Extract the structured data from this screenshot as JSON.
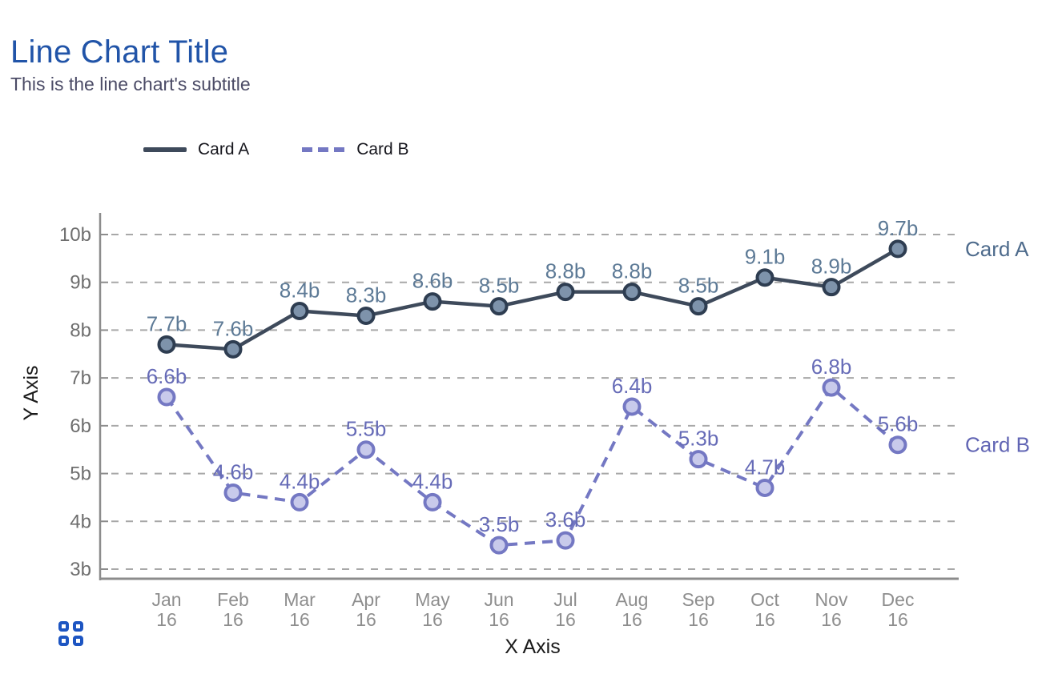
{
  "header": {
    "title": "Line Chart Title",
    "subtitle": "This is the line chart's subtitle",
    "title_color": "#2154a8",
    "subtitle_color": "#4b4b66"
  },
  "legend": {
    "position": "top",
    "items": [
      {
        "label": "Card A",
        "style": "solid",
        "color": "#3e4a5b"
      },
      {
        "label": "Card B",
        "style": "dashed",
        "color": "#7478c3"
      }
    ]
  },
  "chart_data": {
    "type": "line",
    "title": "Line Chart Title",
    "subtitle": "This is the line chart's subtitle",
    "xlabel": "X Axis",
    "ylabel": "Y Axis",
    "categories": [
      "Jan 16",
      "Feb 16",
      "Mar 16",
      "Apr 16",
      "May 16",
      "Jun 16",
      "Jul 16",
      "Aug 16",
      "Sep 16",
      "Oct 16",
      "Nov 16",
      "Dec 16"
    ],
    "y_ticks": [
      "3b",
      "4b",
      "5b",
      "6b",
      "7b",
      "8b",
      "9b",
      "10b"
    ],
    "ylim": [
      3,
      10
    ],
    "unit_suffix": "b",
    "grid": true,
    "grid_style": "dashed",
    "legend_position": "top",
    "axis_color": "#8c8c8c",
    "grid_color": "#a8a8a8",
    "y_tick_label_color": "#6e6e6e",
    "x_tick_label_color": "#8e8e8e",
    "axis_title_color": "#1a1a1a",
    "series": [
      {
        "name": "Card A",
        "style": "solid",
        "line_color": "#3e4a5b",
        "marker_fill": "#7e93ab",
        "marker_stroke": "#2e3d51",
        "label_color": "#5d7a96",
        "end_label_color": "#4e6b8c",
        "values": [
          7.7,
          7.6,
          8.4,
          8.3,
          8.6,
          8.5,
          8.8,
          8.8,
          8.5,
          9.1,
          8.9,
          9.7
        ],
        "point_labels": [
          "7.7b",
          "7.6b",
          "8.4b",
          "8.3b",
          "8.6b",
          "8.5b",
          "8.8b",
          "8.8b",
          "8.5b",
          "9.1b",
          "8.9b",
          "9.7b"
        ]
      },
      {
        "name": "Card B",
        "style": "dashed",
        "line_color": "#7478c3",
        "marker_fill": "#c8caeb",
        "marker_stroke": "#7478c3",
        "label_color": "#666bb7",
        "end_label_color": "#6165b4",
        "values": [
          6.6,
          4.6,
          4.4,
          5.5,
          4.4,
          3.5,
          3.6,
          6.4,
          5.3,
          4.7,
          6.8,
          5.6
        ],
        "point_labels": [
          "6.6b",
          "4.6b",
          "4.4b",
          "5.5b",
          "4.4b",
          "3.5b",
          "3.6b",
          "6.4b",
          "5.3b",
          "4.7b",
          "6.8b",
          "5.6b"
        ]
      }
    ]
  },
  "footer": {
    "logo_icon": "grid-icon",
    "logo_color": "#1d55c2"
  }
}
